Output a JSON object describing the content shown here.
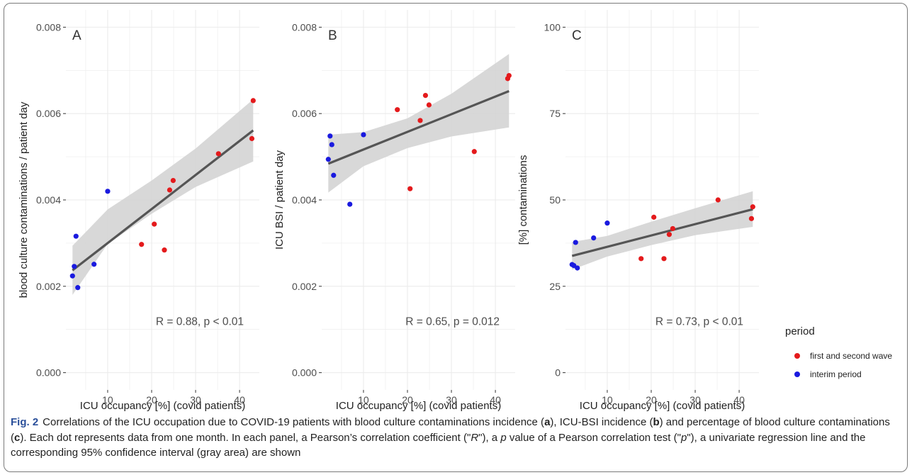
{
  "figure": {
    "label": "Fig. 2",
    "caption": [
      {
        "t": "Correlations of the ICU occupation due to COVID-19 patients with blood culture contaminations incidence ("
      },
      {
        "t": "a",
        "s": "b"
      },
      {
        "t": "), ICU-BSI incidence ("
      },
      {
        "t": "b",
        "s": "b"
      },
      {
        "t": ") and percentage of blood culture contaminations ("
      },
      {
        "t": "c",
        "s": "b"
      },
      {
        "t": "). Each dot represents data from one month. In each panel, a Pearson’s correlation coefficient (\""
      },
      {
        "t": "R",
        "s": "i"
      },
      {
        "t": "\"), a "
      },
      {
        "t": "p",
        "s": "i"
      },
      {
        "t": " value of a Pearson correlation test (\""
      },
      {
        "t": "p",
        "s": "i"
      },
      {
        "t": "\"), a univariate regression line and the corresponding 95% confidence interval (gray area) are shown"
      }
    ]
  },
  "legend": {
    "title": "period",
    "entries": [
      {
        "label": "first and second wave",
        "color": "#e41a1c"
      },
      {
        "label": "interim period",
        "color": "#1a1adf"
      }
    ]
  },
  "colors": {
    "panel_bg": "#ffffff",
    "grid": "#ebebeb",
    "ribbon": "#d4d4d4",
    "line": "#555555",
    "first_and_second_wave": "#e41a1c",
    "interim_period": "#1a1adf"
  },
  "chart_data": [
    {
      "type": "scatter",
      "panel_label": "A",
      "xlabel": "ICU occupancy [%] (covid patients)",
      "ylabel": "blood culture contaminations / patient day",
      "xlim": [
        0.5,
        44.5
      ],
      "ylim": [
        -0.0004,
        0.0084
      ],
      "xticks": [
        10,
        20,
        30,
        40
      ],
      "yticks": [
        0.0,
        0.002,
        0.004,
        0.006,
        0.008
      ],
      "ytick_labels": [
        "0.000",
        "0.002",
        "0.004",
        "0.006",
        "0.008"
      ],
      "annotation": "R = 0.88, p < 0.01",
      "series": [
        {
          "name": "first and second wave",
          "x": [
            17.7,
            20.6,
            22.9,
            24.1,
            24.9,
            35.2,
            42.8,
            43.1
          ],
          "y": [
            0.00297,
            0.00344,
            0.00284,
            0.00423,
            0.00445,
            0.00507,
            0.00542,
            0.0063
          ]
        },
        {
          "name": "interim period",
          "x": [
            2.0,
            2.4,
            2.8,
            3.2,
            6.9,
            10.0
          ],
          "y": [
            0.00224,
            0.00246,
            0.00316,
            0.00197,
            0.00251,
            0.0042
          ]
        }
      ],
      "regression": {
        "x": [
          2.0,
          43.1
        ],
        "y": [
          0.00237,
          0.00561
        ]
      },
      "ci_lower": {
        "x": [
          2.0,
          10,
          20,
          30,
          43.1
        ],
        "y": [
          0.0018,
          0.00298,
          0.00368,
          0.0043,
          0.00489
        ]
      },
      "ci_upper": {
        "x": [
          2.0,
          10,
          20,
          30,
          43.1
        ],
        "y": [
          0.00294,
          0.00378,
          0.00445,
          0.00519,
          0.00633
        ]
      }
    },
    {
      "type": "scatter",
      "panel_label": "B",
      "xlabel": "ICU occupancy [%] (covid patients)",
      "ylabel": "ICU BSI / patient day",
      "xlim": [
        0.5,
        44.5
      ],
      "ylim": [
        -0.0004,
        0.0084
      ],
      "xticks": [
        10,
        20,
        30,
        40
      ],
      "yticks": [
        0.0,
        0.002,
        0.004,
        0.006,
        0.008
      ],
      "ytick_labels": [
        "0.000",
        "0.002",
        "0.004",
        "0.006",
        "0.008"
      ],
      "annotation": "R = 0.65, p = 0.012",
      "series": [
        {
          "name": "first and second wave",
          "x": [
            17.7,
            20.6,
            22.9,
            24.1,
            24.9,
            35.2,
            42.8,
            43.1
          ],
          "y": [
            0.00609,
            0.00426,
            0.00584,
            0.00642,
            0.0062,
            0.00512,
            0.00681,
            0.00688
          ]
        },
        {
          "name": "interim period",
          "x": [
            2.0,
            2.4,
            2.8,
            3.2,
            6.9,
            10.0
          ],
          "y": [
            0.00494,
            0.00548,
            0.00528,
            0.00457,
            0.0039,
            0.00551
          ]
        },
        {
          "name": "",
          "x": [],
          "y": []
        }
      ],
      "regression": {
        "x": [
          2.0,
          43.1
        ],
        "y": [
          0.00484,
          0.00652
        ]
      },
      "ci_lower": {
        "x": [
          2.0,
          10,
          20,
          30,
          43.1
        ],
        "y": [
          0.00417,
          0.00478,
          0.0052,
          0.00547,
          0.00568
        ]
      },
      "ci_upper": {
        "x": [
          2.0,
          10,
          20,
          30,
          43.1
        ],
        "y": [
          0.00551,
          0.00557,
          0.00589,
          0.00646,
          0.00738
        ]
      }
    },
    {
      "type": "scatter",
      "panel_label": "C",
      "xlabel": "ICU occupancy [%] (covid patients)",
      "ylabel": "[%] contaminations",
      "xlim": [
        0.5,
        44.5
      ],
      "ylim": [
        -5,
        105
      ],
      "xticks": [
        10,
        20,
        30,
        40
      ],
      "yticks": [
        0,
        25,
        50,
        75,
        100
      ],
      "ytick_labels": [
        "0",
        "25",
        "50",
        "75",
        "100"
      ],
      "annotation": "R = 0.73, p < 0.01",
      "series": [
        {
          "name": "first and second wave",
          "x": [
            17.7,
            20.6,
            22.9,
            24.1,
            24.9,
            35.2,
            42.8,
            43.1
          ],
          "y": [
            33.0,
            45.0,
            33.0,
            40.0,
            41.7,
            50.0,
            44.6,
            48.0
          ]
        },
        {
          "name": "interim period",
          "x": [
            2.0,
            2.4,
            2.8,
            3.2,
            6.9,
            10.0
          ],
          "y": [
            31.3,
            31.0,
            37.7,
            30.3,
            39.0,
            43.3
          ]
        }
      ],
      "regression": {
        "x": [
          2.0,
          43.1
        ],
        "y": [
          33.8,
          47.3
        ]
      },
      "ci_lower": {
        "x": [
          2.0,
          10,
          20,
          30,
          43.1
        ],
        "y": [
          29.8,
          33.6,
          36.9,
          39.8,
          42.2
        ]
      },
      "ci_upper": {
        "x": [
          2.0,
          10,
          20,
          30,
          43.1
        ],
        "y": [
          37.8,
          39.6,
          43.7,
          47.6,
          52.5
        ]
      }
    }
  ]
}
